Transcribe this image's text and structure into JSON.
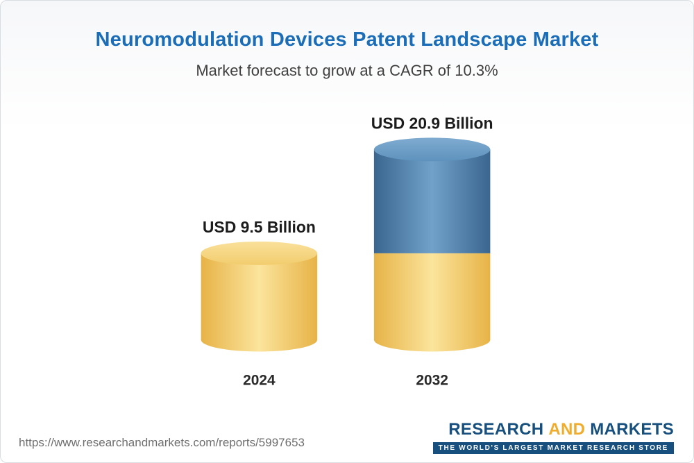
{
  "header": {
    "title": "Neuromodulation Devices Patent Landscape Market",
    "subtitle": "Market forecast to grow at a CAGR of 10.3%"
  },
  "chart_data": {
    "type": "bar",
    "subtype": "stacked-3d-cylinder",
    "title": "Neuromodulation Devices Patent Landscape Market",
    "subtitle": "Market forecast to grow at a CAGR of 10.3%",
    "unit": "USD Billion",
    "cagr_percent": 10.3,
    "categories": [
      "2024",
      "2032"
    ],
    "values": [
      9.5,
      20.9
    ],
    "value_labels": [
      "USD 9.5 Billion",
      "USD 20.9 Billion"
    ],
    "legend": "none",
    "grid": false,
    "bars": [
      {
        "year": "2024",
        "label": "USD 9.5 Billion",
        "value": 9.5,
        "segments": [
          {
            "color": "gold",
            "value": 9.5
          }
        ]
      },
      {
        "year": "2032",
        "label": "USD 20.9 Billion",
        "value": 20.9,
        "segments": [
          {
            "color": "gold",
            "value": 9.5
          },
          {
            "color": "blue",
            "value": 11.4
          }
        ]
      }
    ],
    "colors": {
      "gold_edge": "#e7b347",
      "gold_mid": "#fbe49c",
      "gold_top_light": "#f9e09a",
      "gold_top_dark": "#f2cd6e",
      "blue_edge": "#3a668f",
      "blue_mid": "#71a1c9",
      "blue_top_light": "#7fabd0",
      "blue_top_dark": "#5e92bd",
      "title_blue": "#1a6db6"
    }
  },
  "footer": {
    "url": "https://www.researchandmarkets.com/reports/5997653",
    "logo": {
      "word1": "RESEARCH",
      "word2": "AND",
      "word3": "MARKETS",
      "tagline": "THE WORLD'S LARGEST MARKET RESEARCH STORE",
      "brand_blue": "#17507e",
      "brand_gold": "#f0ad2d"
    }
  }
}
